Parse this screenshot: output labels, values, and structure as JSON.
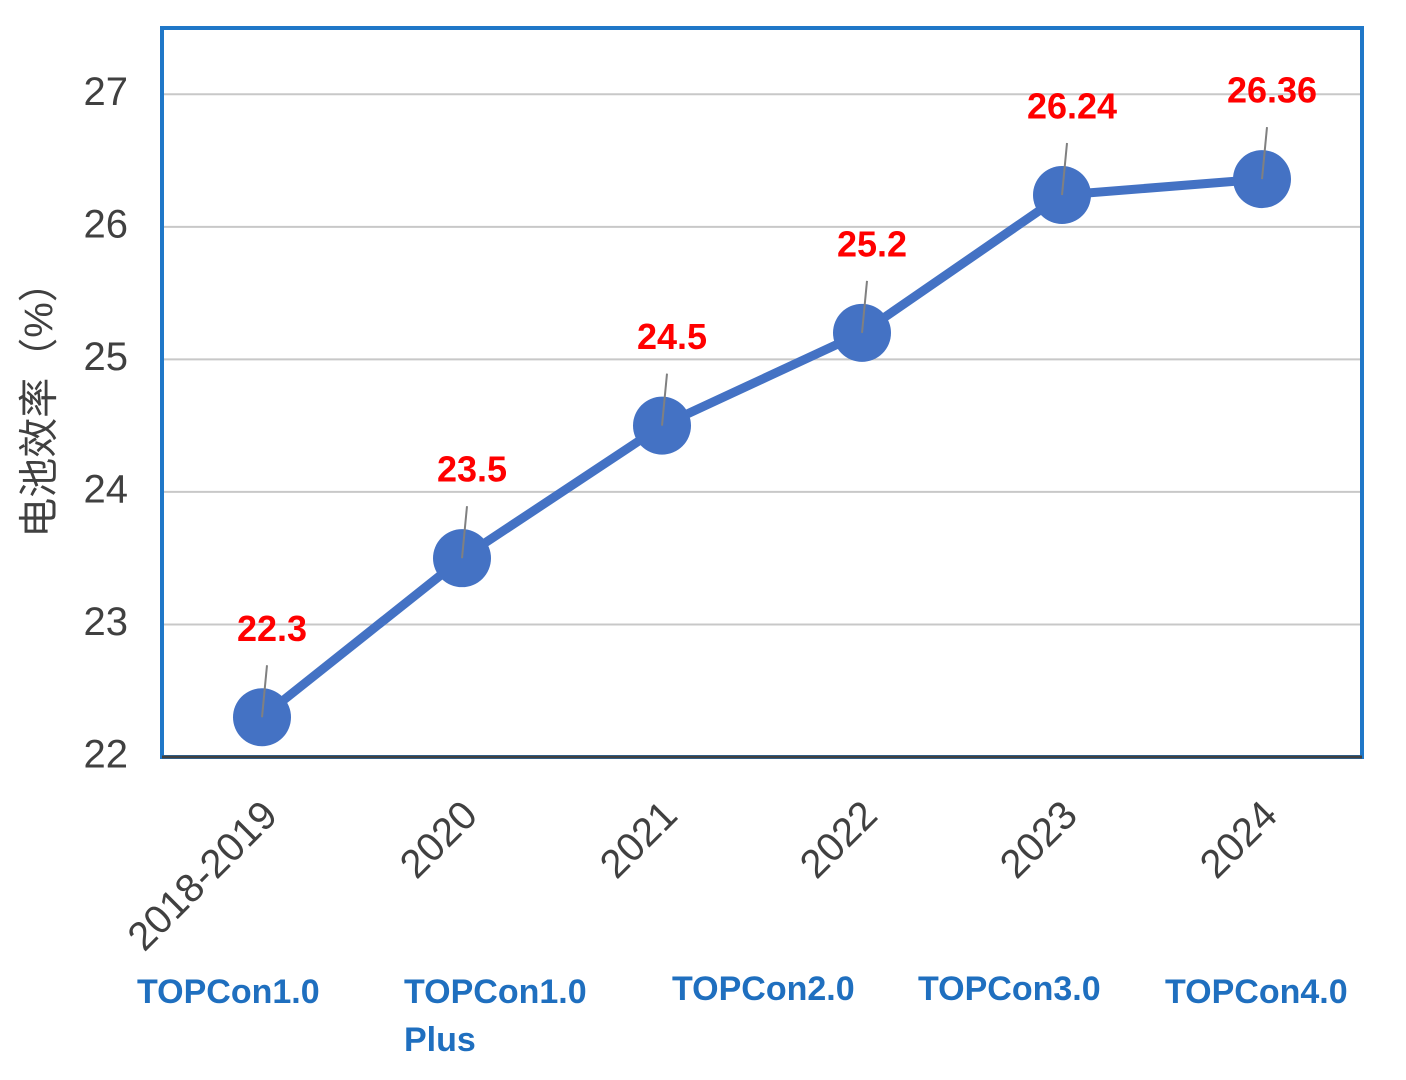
{
  "chart_data": {
    "type": "line",
    "y_label": "电池效率（%）",
    "categories": [
      "2018-2019",
      "2020",
      "2021",
      "2022",
      "2023",
      "2024"
    ],
    "series": [
      {
        "name": "电池效率",
        "color": "#4472c4",
        "values": [
          22.3,
          23.5,
          24.5,
          25.2,
          26.24,
          26.36
        ]
      }
    ],
    "ylim": [
      22,
      27.5
    ],
    "yticks": [
      22,
      23,
      24,
      25,
      26,
      27
    ],
    "grid": true,
    "label_color": "#ff0000",
    "annotations": [
      "TOPCon1.0",
      "TOPCon1.0 Plus",
      "TOPCon2.0",
      "TOPCon3.0",
      "TOPCon4.0"
    ]
  }
}
